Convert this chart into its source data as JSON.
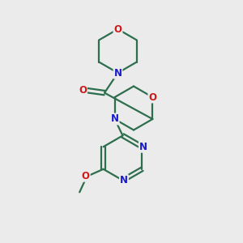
{
  "bg_color": "#ebebeb",
  "bond_color": "#2d6e4e",
  "N_color": "#1a1acc",
  "O_color": "#cc1a1a",
  "bond_width": 1.6,
  "fig_size": [
    3.0,
    3.0
  ],
  "dpi": 100,
  "xlim": [
    0,
    10
  ],
  "ylim": [
    0,
    10
  ]
}
